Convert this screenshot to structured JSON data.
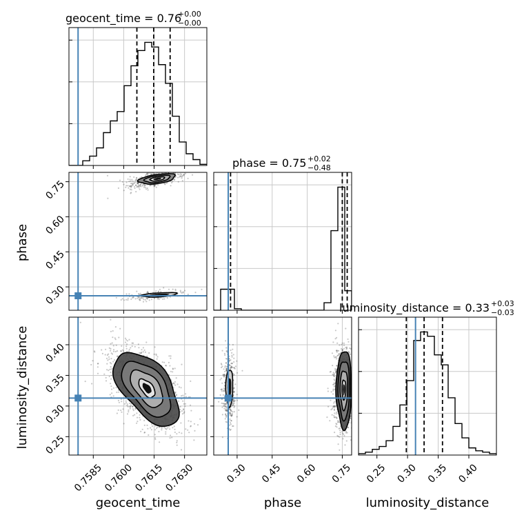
{
  "chart_data": {
    "type": "corner",
    "parameters": [
      "geocent_time",
      "phase",
      "luminosity_distance"
    ],
    "colors": {
      "truth": "#4682b4",
      "hist": "#000000",
      "grid": "#c8c8c8",
      "frame": "#000000"
    },
    "grid": true,
    "truths": {
      "geocent_time": 0.75775,
      "phase": 0.262,
      "luminosity_distance": 0.313
    },
    "ranges": {
      "geocent_time": [
        0.7573,
        0.7641
      ],
      "phase": [
        0.2,
        0.79
      ],
      "luminosity_distance": [
        0.22,
        0.445
      ]
    },
    "ticks": {
      "geocent_time": [
        0.7585,
        0.76,
        0.7615,
        0.763
      ],
      "phase": [
        0.3,
        0.45,
        0.6,
        0.75
      ],
      "luminosity_distance": [
        0.25,
        0.3,
        0.35,
        0.4
      ]
    },
    "tick_labels": {
      "geocent_time": [
        "0.7585",
        "0.7600",
        "0.7615",
        "0.7630"
      ],
      "phase": [
        "0.30",
        "0.45",
        "0.60",
        "0.75"
      ],
      "luminosity_distance": [
        "0.25",
        "0.30",
        "0.35",
        "0.40"
      ]
    },
    "titles": {
      "geocent_time": {
        "main": "geocent_time = 0.76",
        "plus": "+0.00",
        "minus": "−0.00"
      },
      "phase": {
        "main": "phase = 0.75",
        "plus": "+0.02",
        "minus": "−0.48"
      },
      "luminosity_distance": {
        "main": "luminosity_distance = 0.33",
        "plus": "+0.03",
        "minus": "−0.03"
      }
    },
    "quantiles": {
      "geocent_time": [
        0.76065,
        0.76148,
        0.76229
      ],
      "phase": [
        0.272,
        0.75,
        0.771
      ],
      "luminosity_distance": [
        0.298,
        0.327,
        0.357
      ]
    },
    "histograms": {
      "geocent_time": {
        "edges": [
          0.7573,
          0.75764,
          0.75798,
          0.75832,
          0.75866,
          0.759,
          0.75934,
          0.75968,
          0.76002,
          0.76036,
          0.7607,
          0.76104,
          0.76138,
          0.76172,
          0.76206,
          0.7624,
          0.76274,
          0.76308,
          0.76342,
          0.76376,
          0.7641
        ],
        "counts": [
          0,
          0,
          4,
          8,
          15,
          28,
          38,
          46,
          68,
          85,
          98,
          105,
          101,
          86,
          70,
          42,
          20,
          10,
          5,
          1
        ]
      },
      "phase": {
        "edges": [
          0.2,
          0.2295,
          0.259,
          0.2885,
          0.318,
          0.3475,
          0.377,
          0.4065,
          0.436,
          0.4655,
          0.495,
          0.5245,
          0.554,
          0.5835,
          0.613,
          0.6425,
          0.672,
          0.7015,
          0.731,
          0.7605,
          0.79
        ],
        "counts": [
          0,
          14,
          14,
          1,
          0,
          0,
          0,
          0,
          0,
          0,
          0,
          0,
          0,
          0,
          0,
          0,
          5,
          53,
          82,
          13
        ]
      },
      "luminosity_distance": {
        "edges": [
          0.22,
          0.23125,
          0.2425,
          0.25375,
          0.265,
          0.27625,
          0.2875,
          0.29875,
          0.31,
          0.32125,
          0.3325,
          0.34375,
          0.355,
          0.36625,
          0.3775,
          0.38875,
          0.4,
          0.41125,
          0.4225,
          0.43375,
          0.445
        ],
        "counts": [
          1,
          2,
          4,
          6,
          10,
          20,
          35,
          52,
          80,
          86,
          83,
          70,
          63,
          40,
          22,
          12,
          5,
          3,
          2,
          1
        ]
      }
    },
    "scatter_sets": [
      {
        "xparam": "geocent_time",
        "yparam": "phase",
        "clusters": [
          {
            "cx": 0.76155,
            "cy": 0.762,
            "sx": 0.0007,
            "sy": 0.022,
            "rho": 0.55,
            "n": 420
          },
          {
            "cx": 0.76155,
            "cy": 0.265,
            "sx": 0.0007,
            "sy": 0.012,
            "rho": 0.55,
            "n": 150
          }
        ],
        "contours": [
          {
            "cx": 0.76165,
            "cy": 0.762,
            "sx": 0.00045,
            "sy": 0.011,
            "rho": 0.45,
            "levels": [
              0.8,
              1.4,
              2.0
            ]
          },
          {
            "cx": 0.76175,
            "cy": 0.266,
            "sx": 0.00055,
            "sy": 0.006,
            "rho": 0.45,
            "levels": [
              1.6
            ]
          }
        ]
      },
      {
        "xparam": "geocent_time",
        "yparam": "luminosity_distance",
        "clusters": [
          {
            "cx": 0.76115,
            "cy": 0.329,
            "sx": 0.0009,
            "sy": 0.034,
            "rho": -0.55,
            "n": 1400
          }
        ],
        "contours": [
          {
            "cx": 0.76115,
            "cy": 0.329,
            "sx": 0.0008,
            "sy": 0.03,
            "rho": -0.55,
            "levels": [
              0.5,
              1.0,
              1.5,
              2.0
            ]
          }
        ]
      },
      {
        "xparam": "phase",
        "yparam": "luminosity_distance",
        "clusters": [
          {
            "cx": 0.265,
            "cy": 0.327,
            "sx": 0.014,
            "sy": 0.03,
            "rho": 0.0,
            "n": 450
          },
          {
            "cx": 0.757,
            "cy": 0.327,
            "sx": 0.02,
            "sy": 0.03,
            "rho": 0.0,
            "n": 1300
          }
        ],
        "contours": [
          {
            "cx": 0.267,
            "cy": 0.33,
            "sx": 0.01,
            "sy": 0.02,
            "rho": 0.0,
            "levels": [
              1.5
            ]
          },
          {
            "cx": 0.757,
            "cy": 0.327,
            "sx": 0.016,
            "sy": 0.032,
            "rho": 0.0,
            "levels": [
              0.5,
              1.0,
              1.5,
              2.0
            ]
          }
        ]
      }
    ]
  }
}
